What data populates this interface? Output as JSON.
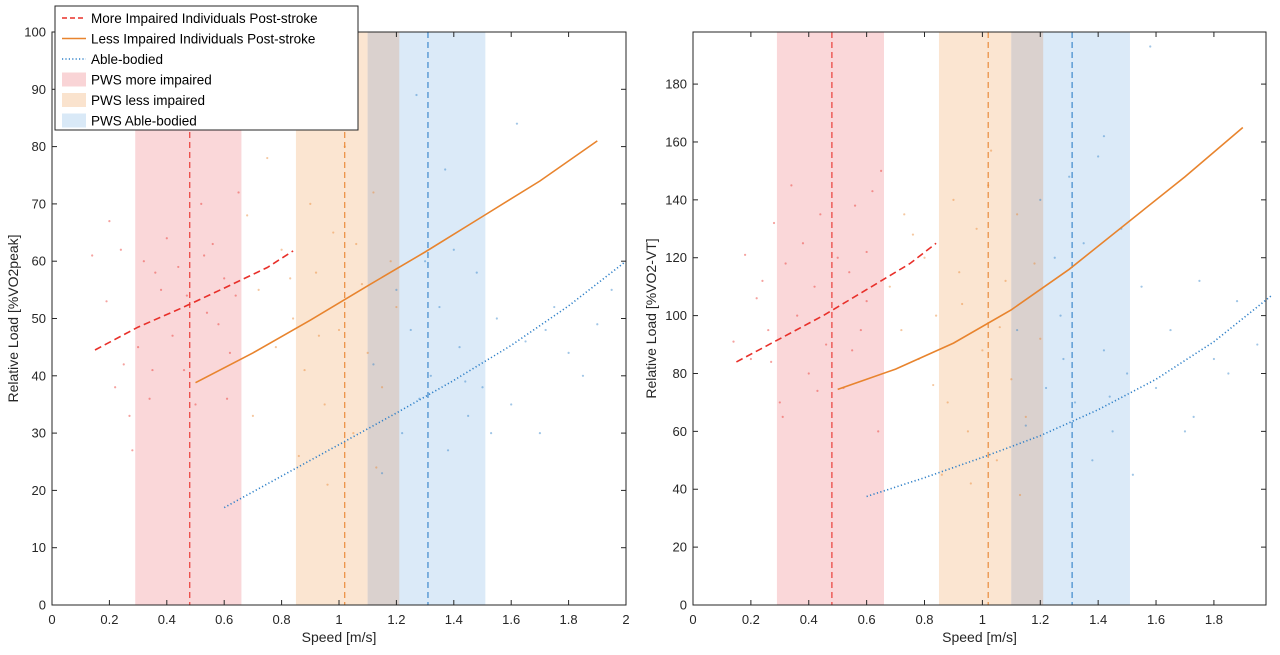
{
  "colors": {
    "more_impaired": "#e8302a",
    "less_impaired": "#e8842e",
    "able_bodied": "#2f80c8",
    "band_more": "#f8c9cc",
    "band_less": "#f9dcc2",
    "band_able": "#cfe3f5",
    "band_overlap": "#d9cec8"
  },
  "legend": {
    "entries": [
      {
        "label": "More Impaired Individuals Post-stroke",
        "kind": "line",
        "style": "dashed",
        "color_key": "more_impaired"
      },
      {
        "label": "Less Impaired Individuals Post-stroke",
        "kind": "line",
        "style": "solid",
        "color_key": "less_impaired"
      },
      {
        "label": "Able-bodied",
        "kind": "line",
        "style": "dotted",
        "color_key": "able_bodied"
      },
      {
        "label": "PWS more impaired",
        "kind": "patch",
        "color_key": "band_more"
      },
      {
        "label": "PWS less impaired",
        "kind": "patch",
        "color_key": "band_less"
      },
      {
        "label": "PWS Able-bodied",
        "kind": "patch",
        "color_key": "band_able"
      }
    ],
    "placement": "top-left, left panel"
  },
  "chart_data": [
    {
      "type": "line",
      "xlabel": "Speed [m/s]",
      "ylabel": "Relative Load [%VO2peak]",
      "xlim": [
        0,
        2
      ],
      "ylim": [
        0,
        100
      ],
      "xticks": [
        0,
        0.2,
        0.4,
        0.6,
        0.8,
        1,
        1.2,
        1.4,
        1.6,
        1.8,
        2
      ],
      "xtick_labels": [
        "0",
        "0.2",
        "0.4",
        "0.6",
        "0.8",
        "1",
        "1.2",
        "1.4",
        "1.6",
        "1.8",
        "2"
      ],
      "yticks": [
        0,
        10,
        20,
        30,
        40,
        50,
        60,
        70,
        80,
        90,
        100
      ],
      "ytick_labels": [
        "0",
        "10",
        "20",
        "30",
        "40",
        "50",
        "60",
        "70",
        "80",
        "90",
        "100"
      ],
      "grid": false,
      "bands": [
        {
          "name": "PWS more impaired",
          "x0": 0.29,
          "x1": 0.66,
          "color_key": "band_more"
        },
        {
          "name": "PWS less impaired",
          "x0": 0.85,
          "x1": 1.21,
          "color_key": "band_less"
        },
        {
          "name": "PWS Able-bodied",
          "x0": 1.1,
          "x1": 1.51,
          "color_key": "band_able"
        }
      ],
      "vlines": [
        {
          "x": 0.48,
          "color_key": "more_impaired"
        },
        {
          "x": 1.02,
          "color_key": "less_impaired"
        },
        {
          "x": 1.31,
          "color_key": "able_bodied"
        }
      ],
      "series": [
        {
          "name": "More Impaired Individuals Post-stroke",
          "style": "dashed",
          "color_key": "more_impaired",
          "x": [
            0.15,
            0.3,
            0.45,
            0.6,
            0.75,
            0.84
          ],
          "y": [
            44.5,
            48.5,
            51.8,
            55.3,
            58.9,
            61.8
          ]
        },
        {
          "name": "Less Impaired Individuals Post-stroke",
          "style": "solid",
          "color_key": "less_impaired",
          "x": [
            0.5,
            0.7,
            0.9,
            1.1,
            1.3,
            1.5,
            1.7,
            1.9
          ],
          "y": [
            38.8,
            44.0,
            49.7,
            55.7,
            61.6,
            67.8,
            74.0,
            81.0
          ]
        },
        {
          "name": "Able-bodied",
          "style": "dotted",
          "color_key": "able_bodied",
          "x": [
            0.6,
            0.8,
            1.0,
            1.2,
            1.4,
            1.6,
            1.8,
            2.0
          ],
          "y": [
            17.0,
            22.5,
            28.0,
            33.5,
            39.2,
            45.3,
            52.2,
            60.0
          ]
        }
      ],
      "scatter": {
        "more_impaired": [
          [
            0.14,
            61
          ],
          [
            0.2,
            67
          ],
          [
            0.19,
            53
          ],
          [
            0.22,
            38
          ],
          [
            0.24,
            62
          ],
          [
            0.27,
            33
          ],
          [
            0.28,
            27
          ],
          [
            0.3,
            45
          ],
          [
            0.32,
            60
          ],
          [
            0.34,
            36
          ],
          [
            0.36,
            58
          ],
          [
            0.38,
            55
          ],
          [
            0.4,
            64
          ],
          [
            0.42,
            47
          ],
          [
            0.44,
            59
          ],
          [
            0.46,
            41
          ],
          [
            0.5,
            35
          ],
          [
            0.52,
            70
          ],
          [
            0.54,
            51
          ],
          [
            0.56,
            63
          ],
          [
            0.58,
            49
          ],
          [
            0.6,
            57
          ],
          [
            0.62,
            44
          ],
          [
            0.64,
            54
          ],
          [
            0.65,
            72
          ],
          [
            0.35,
            41
          ],
          [
            0.25,
            42
          ],
          [
            0.53,
            61
          ],
          [
            0.61,
            36
          ],
          [
            0.47,
            54
          ]
        ],
        "less_impaired": [
          [
            0.68,
            68
          ],
          [
            0.72,
            55
          ],
          [
            0.75,
            78
          ],
          [
            0.78,
            45
          ],
          [
            0.8,
            62
          ],
          [
            0.84,
            50
          ],
          [
            0.88,
            41
          ],
          [
            0.9,
            70
          ],
          [
            0.92,
            58
          ],
          [
            0.95,
            35
          ],
          [
            0.98,
            65
          ],
          [
            1.0,
            48
          ],
          [
            1.02,
            80
          ],
          [
            1.05,
            30
          ],
          [
            1.08,
            56
          ],
          [
            1.1,
            44
          ],
          [
            1.12,
            72
          ],
          [
            1.15,
            38
          ],
          [
            1.18,
            60
          ],
          [
            1.2,
            52
          ],
          [
            0.86,
            26
          ],
          [
            0.96,
            21
          ],
          [
            1.03,
            88
          ],
          [
            0.7,
            33
          ],
          [
            1.13,
            24
          ],
          [
            0.83,
            57
          ],
          [
            0.93,
            47
          ],
          [
            1.06,
            63
          ]
        ],
        "able_bodied": [
          [
            1.12,
            42
          ],
          [
            1.15,
            23
          ],
          [
            1.2,
            55
          ],
          [
            1.22,
            30
          ],
          [
            1.25,
            48
          ],
          [
            1.28,
            36
          ],
          [
            1.3,
            60
          ],
          [
            1.32,
            40
          ],
          [
            1.35,
            52
          ],
          [
            1.38,
            27
          ],
          [
            1.4,
            62
          ],
          [
            1.42,
            45
          ],
          [
            1.45,
            33
          ],
          [
            1.48,
            58
          ],
          [
            1.5,
            38
          ],
          [
            1.55,
            50
          ],
          [
            1.6,
            35
          ],
          [
            1.65,
            46
          ],
          [
            1.7,
            30
          ],
          [
            1.75,
            52
          ],
          [
            1.8,
            44
          ],
          [
            1.85,
            40
          ],
          [
            1.9,
            49
          ],
          [
            1.95,
            55
          ],
          [
            1.37,
            76
          ],
          [
            1.53,
            30
          ],
          [
            1.44,
            39
          ],
          [
            1.62,
            84
          ],
          [
            1.27,
            89
          ],
          [
            1.72,
            48
          ]
        ]
      }
    },
    {
      "type": "line",
      "xlabel": "Speed [m/s]",
      "ylabel": "Relative Load [%VO2-VT]",
      "xlim": [
        0,
        2
      ],
      "ylim": [
        0,
        200
      ],
      "xticks": [
        0,
        0.2,
        0.4,
        0.6,
        0.8,
        1,
        1.2,
        1.4,
        1.6,
        1.8
      ],
      "xtick_labels": [
        "0",
        "0.2",
        "0.4",
        "0.6",
        "0.8",
        "1",
        "1.2",
        "1.4",
        "1.6",
        "1.8"
      ],
      "yticks": [
        0,
        20,
        40,
        60,
        80,
        100,
        120,
        140,
        160,
        180
      ],
      "ytick_labels": [
        "0",
        "20",
        "40",
        "60",
        "80",
        "100",
        "120",
        "140",
        "160",
        "180"
      ],
      "grid": false,
      "bands": [
        {
          "name": "PWS more impaired",
          "x0": 0.29,
          "x1": 0.66,
          "color_key": "band_more"
        },
        {
          "name": "PWS less impaired",
          "x0": 0.85,
          "x1": 1.21,
          "color_key": "band_less"
        },
        {
          "name": "PWS Able-bodied",
          "x0": 1.1,
          "x1": 1.51,
          "color_key": "band_able"
        }
      ],
      "vlines": [
        {
          "x": 0.48,
          "color_key": "more_impaired"
        },
        {
          "x": 1.02,
          "color_key": "less_impaired"
        },
        {
          "x": 1.31,
          "color_key": "able_bodied"
        }
      ],
      "series": [
        {
          "name": "More Impaired Individuals Post-stroke",
          "style": "dashed",
          "color_key": "more_impaired",
          "x": [
            0.15,
            0.3,
            0.45,
            0.6,
            0.75,
            0.84
          ],
          "y": [
            84,
            92,
            100,
            109,
            118,
            125
          ]
        },
        {
          "name": "Less Impaired Individuals Post-stroke",
          "style": "solid",
          "color_key": "less_impaired",
          "x": [
            0.5,
            0.7,
            0.9,
            1.1,
            1.3,
            1.5,
            1.7,
            1.9
          ],
          "y": [
            74.5,
            81.5,
            90.5,
            102,
            116,
            132,
            148,
            165
          ]
        },
        {
          "name": "Able-bodied",
          "style": "dotted",
          "color_key": "able_bodied",
          "x": [
            0.6,
            0.8,
            1.0,
            1.2,
            1.4,
            1.6,
            1.8,
            2.0
          ],
          "y": [
            37.5,
            44,
            51,
            58.5,
            67.5,
            78,
            91,
            107
          ]
        }
      ],
      "scatter": {
        "more_impaired": [
          [
            0.14,
            91
          ],
          [
            0.18,
            121
          ],
          [
            0.2,
            85
          ],
          [
            0.22,
            106
          ],
          [
            0.24,
            112
          ],
          [
            0.26,
            95
          ],
          [
            0.28,
            132
          ],
          [
            0.3,
            70
          ],
          [
            0.32,
            118
          ],
          [
            0.34,
            145
          ],
          [
            0.36,
            100
          ],
          [
            0.38,
            125
          ],
          [
            0.4,
            80
          ],
          [
            0.42,
            110
          ],
          [
            0.44,
            135
          ],
          [
            0.46,
            90
          ],
          [
            0.5,
            120
          ],
          [
            0.52,
            75
          ],
          [
            0.54,
            115
          ],
          [
            0.56,
            138
          ],
          [
            0.58,
            95
          ],
          [
            0.6,
            105
          ],
          [
            0.62,
            143
          ],
          [
            0.64,
            60
          ],
          [
            0.65,
            150
          ],
          [
            0.31,
            65
          ],
          [
            0.27,
            84
          ],
          [
            0.55,
            88
          ],
          [
            0.43,
            74
          ],
          [
            0.6,
            122
          ]
        ],
        "less_impaired": [
          [
            0.68,
            110
          ],
          [
            0.72,
            95
          ],
          [
            0.76,
            128
          ],
          [
            0.78,
            85
          ],
          [
            0.8,
            120
          ],
          [
            0.84,
            100
          ],
          [
            0.88,
            70
          ],
          [
            0.9,
            140
          ],
          [
            0.92,
            115
          ],
          [
            0.95,
            60
          ],
          [
            0.98,
            130
          ],
          [
            1.0,
            88
          ],
          [
            1.02,
            145
          ],
          [
            1.05,
            50
          ],
          [
            1.08,
            112
          ],
          [
            1.1,
            78
          ],
          [
            1.12,
            135
          ],
          [
            1.15,
            65
          ],
          [
            1.18,
            118
          ],
          [
            1.2,
            92
          ],
          [
            0.86,
            45
          ],
          [
            0.96,
            42
          ],
          [
            1.03,
            157
          ],
          [
            0.73,
            135
          ],
          [
            1.13,
            38
          ],
          [
            0.83,
            76
          ],
          [
            0.93,
            104
          ],
          [
            1.06,
            96
          ]
        ],
        "able_bodied": [
          [
            1.12,
            95
          ],
          [
            1.15,
            62
          ],
          [
            1.2,
            140
          ],
          [
            1.22,
            75
          ],
          [
            1.25,
            120
          ],
          [
            1.28,
            85
          ],
          [
            1.3,
            148
          ],
          [
            1.32,
            70
          ],
          [
            1.35,
            125
          ],
          [
            1.38,
            50
          ],
          [
            1.4,
            155
          ],
          [
            1.42,
            88
          ],
          [
            1.45,
            60
          ],
          [
            1.48,
            130
          ],
          [
            1.5,
            80
          ],
          [
            1.55,
            110
          ],
          [
            1.6,
            75
          ],
          [
            1.65,
            95
          ],
          [
            1.7,
            60
          ],
          [
            1.75,
            112
          ],
          [
            1.8,
            85
          ],
          [
            1.85,
            80
          ],
          [
            1.88,
            105
          ],
          [
            1.95,
            90
          ],
          [
            1.42,
            162
          ],
          [
            1.52,
            45
          ],
          [
            1.44,
            72
          ],
          [
            1.58,
            193
          ],
          [
            1.27,
            100
          ],
          [
            1.73,
            65
          ]
        ]
      }
    }
  ]
}
